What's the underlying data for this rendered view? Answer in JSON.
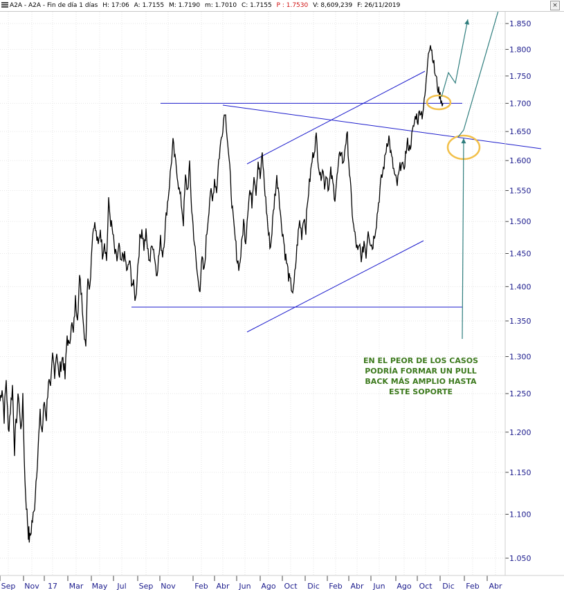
{
  "header": {
    "title": "A2A - A2A - Fin de día 1 días",
    "h": "H: 17:06",
    "a": "A: 1.7155",
    "m": "M: 1.7190",
    "min": "m: 1.7010",
    "c": "C: 1.7155",
    "p": "P : 1.7530",
    "v": "V: 8,609,239",
    "f": "F: 26/11/2019"
  },
  "colors": {
    "price": "#000000",
    "trendline": "#1a1acc",
    "forecast_arrow": "#2e7d7d",
    "highlight": "#f2c04a",
    "note": "#3d7a1e",
    "axis_text": "#1a1a8c",
    "p_value": "#d01010"
  },
  "chart_data": {
    "type": "line",
    "y_axis": {
      "side": "right",
      "ticks": [
        "1.850",
        "1.800",
        "1.750",
        "1.700",
        "1.650",
        "1.600",
        "1.550",
        "1.500",
        "1.450",
        "1.400",
        "1.350",
        "1.300",
        "1.250",
        "1.200",
        "1.150",
        "1.100",
        "1.050"
      ],
      "log_scale": true
    },
    "x_axis": {
      "ticks": [
        "Sep",
        "Nov",
        "17",
        "Mar",
        "May",
        "Jul",
        "Sep",
        "Nov",
        "Feb",
        "Abr",
        "Jun",
        "Ago",
        "Oct",
        "Dic",
        "Feb",
        "Abr",
        "Jun",
        "Ago",
        "Oct",
        "Dic",
        "Feb",
        "Abr"
      ]
    },
    "series": [
      {
        "points": [
          [
            0,
            1.24
          ],
          [
            3,
            1.26
          ],
          [
            6,
            1.22
          ],
          [
            9,
            1.27
          ],
          [
            12,
            1.2
          ],
          [
            15,
            1.23
          ],
          [
            18,
            1.26
          ],
          [
            21,
            1.18
          ],
          [
            24,
            1.22
          ],
          [
            27,
            1.25
          ],
          [
            30,
            1.2
          ],
          [
            33,
            1.24
          ],
          [
            36,
            1.14
          ],
          [
            39,
            1.1
          ],
          [
            41,
            1.08
          ],
          [
            43,
            1.07
          ],
          [
            46,
            1.09
          ],
          [
            49,
            1.1
          ],
          [
            52,
            1.14
          ],
          [
            55,
            1.18
          ],
          [
            58,
            1.22
          ],
          [
            61,
            1.2
          ],
          [
            64,
            1.24
          ],
          [
            67,
            1.22
          ],
          [
            70,
            1.27
          ],
          [
            73,
            1.25
          ],
          [
            76,
            1.3
          ],
          [
            79,
            1.28
          ],
          [
            82,
            1.31
          ],
          [
            85,
            1.27
          ],
          [
            88,
            1.29
          ],
          [
            91,
            1.3
          ],
          [
            94,
            1.27
          ],
          [
            97,
            1.33
          ],
          [
            100,
            1.31
          ],
          [
            103,
            1.35
          ],
          [
            106,
            1.33
          ],
          [
            109,
            1.38
          ],
          [
            112,
            1.36
          ],
          [
            115,
            1.41
          ],
          [
            118,
            1.39
          ],
          [
            121,
            1.34
          ],
          [
            124,
            1.32
          ],
          [
            127,
            1.42
          ],
          [
            130,
            1.4
          ],
          [
            133,
            1.47
          ],
          [
            136,
            1.5
          ],
          [
            139,
            1.48
          ],
          [
            142,
            1.46
          ],
          [
            145,
            1.49
          ],
          [
            148,
            1.45
          ],
          [
            151,
            1.47
          ],
          [
            154,
            1.44
          ],
          [
            157,
            1.53
          ],
          [
            160,
            1.5
          ],
          [
            163,
            1.48
          ],
          [
            166,
            1.45
          ],
          [
            169,
            1.44
          ],
          [
            172,
            1.46
          ],
          [
            175,
            1.43
          ],
          [
            178,
            1.45
          ],
          [
            181,
            1.44
          ],
          [
            184,
            1.42
          ],
          [
            187,
            1.44
          ],
          [
            190,
            1.41
          ],
          [
            193,
            1.4
          ],
          [
            196,
            1.38
          ],
          [
            199,
            1.43
          ],
          [
            202,
            1.47
          ],
          [
            205,
            1.49
          ],
          [
            208,
            1.46
          ],
          [
            211,
            1.48
          ],
          [
            214,
            1.45
          ],
          [
            217,
            1.44
          ],
          [
            220,
            1.47
          ],
          [
            223,
            1.45
          ],
          [
            226,
            1.42
          ],
          [
            229,
            1.44
          ],
          [
            232,
            1.47
          ],
          [
            235,
            1.45
          ],
          [
            238,
            1.48
          ],
          [
            241,
            1.52
          ],
          [
            244,
            1.55
          ],
          [
            247,
            1.59
          ],
          [
            250,
            1.63
          ],
          [
            253,
            1.6
          ],
          [
            256,
            1.58
          ],
          [
            259,
            1.55
          ],
          [
            262,
            1.53
          ],
          [
            265,
            1.5
          ],
          [
            268,
            1.57
          ],
          [
            271,
            1.55
          ],
          [
            274,
            1.59
          ],
          [
            277,
            1.52
          ],
          [
            280,
            1.48
          ],
          [
            283,
            1.44
          ],
          [
            286,
            1.41
          ],
          [
            289,
            1.4
          ],
          [
            292,
            1.44
          ],
          [
            295,
            1.42
          ],
          [
            298,
            1.47
          ],
          [
            301,
            1.51
          ],
          [
            304,
            1.55
          ],
          [
            307,
            1.53
          ],
          [
            310,
            1.57
          ],
          [
            313,
            1.55
          ],
          [
            316,
            1.6
          ],
          [
            319,
            1.63
          ],
          [
            322,
            1.66
          ],
          [
            325,
            1.69
          ],
          [
            328,
            1.65
          ],
          [
            331,
            1.6
          ],
          [
            334,
            1.55
          ],
          [
            337,
            1.5
          ],
          [
            340,
            1.47
          ],
          [
            343,
            1.44
          ],
          [
            346,
            1.43
          ],
          [
            349,
            1.46
          ],
          [
            352,
            1.5
          ],
          [
            355,
            1.47
          ],
          [
            358,
            1.52
          ],
          [
            361,
            1.55
          ],
          [
            364,
            1.53
          ],
          [
            367,
            1.58
          ],
          [
            370,
            1.55
          ],
          [
            373,
            1.6
          ],
          [
            376,
            1.57
          ],
          [
            379,
            1.61
          ],
          [
            382,
            1.56
          ],
          [
            385,
            1.52
          ],
          [
            388,
            1.48
          ],
          [
            391,
            1.46
          ],
          [
            394,
            1.5
          ],
          [
            397,
            1.54
          ],
          [
            400,
            1.57
          ],
          [
            403,
            1.55
          ],
          [
            406,
            1.5
          ],
          [
            409,
            1.48
          ],
          [
            412,
            1.45
          ],
          [
            415,
            1.43
          ],
          [
            418,
            1.41
          ],
          [
            421,
            1.4
          ],
          [
            424,
            1.39
          ],
          [
            427,
            1.43
          ],
          [
            430,
            1.47
          ],
          [
            433,
            1.5
          ],
          [
            436,
            1.48
          ],
          [
            439,
            1.51
          ],
          [
            442,
            1.49
          ],
          [
            445,
            1.54
          ],
          [
            448,
            1.57
          ],
          [
            451,
            1.6
          ],
          [
            454,
            1.62
          ],
          [
            457,
            1.64
          ],
          [
            460,
            1.6
          ],
          [
            463,
            1.57
          ],
          [
            466,
            1.59
          ],
          [
            469,
            1.56
          ],
          [
            472,
            1.58
          ],
          [
            475,
            1.55
          ],
          [
            478,
            1.58
          ],
          [
            481,
            1.56
          ],
          [
            484,
            1.54
          ],
          [
            487,
            1.57
          ],
          [
            490,
            1.6
          ],
          [
            493,
            1.62
          ],
          [
            496,
            1.59
          ],
          [
            499,
            1.63
          ],
          [
            502,
            1.64
          ],
          [
            505,
            1.58
          ],
          [
            508,
            1.53
          ],
          [
            511,
            1.49
          ],
          [
            514,
            1.47
          ],
          [
            517,
            1.45
          ],
          [
            520,
            1.46
          ],
          [
            523,
            1.44
          ],
          [
            526,
            1.47
          ],
          [
            529,
            1.45
          ],
          [
            532,
            1.49
          ],
          [
            535,
            1.47
          ],
          [
            538,
            1.46
          ],
          [
            541,
            1.48
          ],
          [
            544,
            1.5
          ],
          [
            547,
            1.53
          ],
          [
            550,
            1.56
          ],
          [
            553,
            1.58
          ],
          [
            556,
            1.6
          ],
          [
            559,
            1.63
          ],
          [
            562,
            1.64
          ],
          [
            565,
            1.61
          ],
          [
            568,
            1.59
          ],
          [
            571,
            1.57
          ],
          [
            574,
            1.56
          ],
          [
            577,
            1.58
          ],
          [
            580,
            1.6
          ],
          [
            583,
            1.58
          ],
          [
            586,
            1.61
          ],
          [
            589,
            1.63
          ],
          [
            592,
            1.62
          ],
          [
            595,
            1.64
          ],
          [
            598,
            1.66
          ],
          [
            601,
            1.68
          ],
          [
            604,
            1.67
          ],
          [
            607,
            1.69
          ],
          [
            610,
            1.68
          ],
          [
            613,
            1.7
          ],
          [
            616,
            1.74
          ],
          [
            619,
            1.8
          ],
          [
            622,
            1.81
          ],
          [
            625,
            1.79
          ],
          [
            628,
            1.76
          ],
          [
            631,
            1.74
          ],
          [
            634,
            1.72
          ],
          [
            637,
            1.71
          ],
          [
            640,
            1.7
          ]
        ]
      }
    ],
    "annotations": [
      {
        "type": "hline",
        "value": 1.7,
        "label": "resistance"
      },
      {
        "type": "hline",
        "value": 1.37,
        "label": "support"
      },
      {
        "type": "text",
        "lines": [
          "EN EL PEOR DE LOS CASOS",
          "PODRÍA FORMAR UN PULL",
          "BACK MÁS AMPLIO HASTA",
          "ESTE SOPORTE"
        ]
      }
    ]
  }
}
